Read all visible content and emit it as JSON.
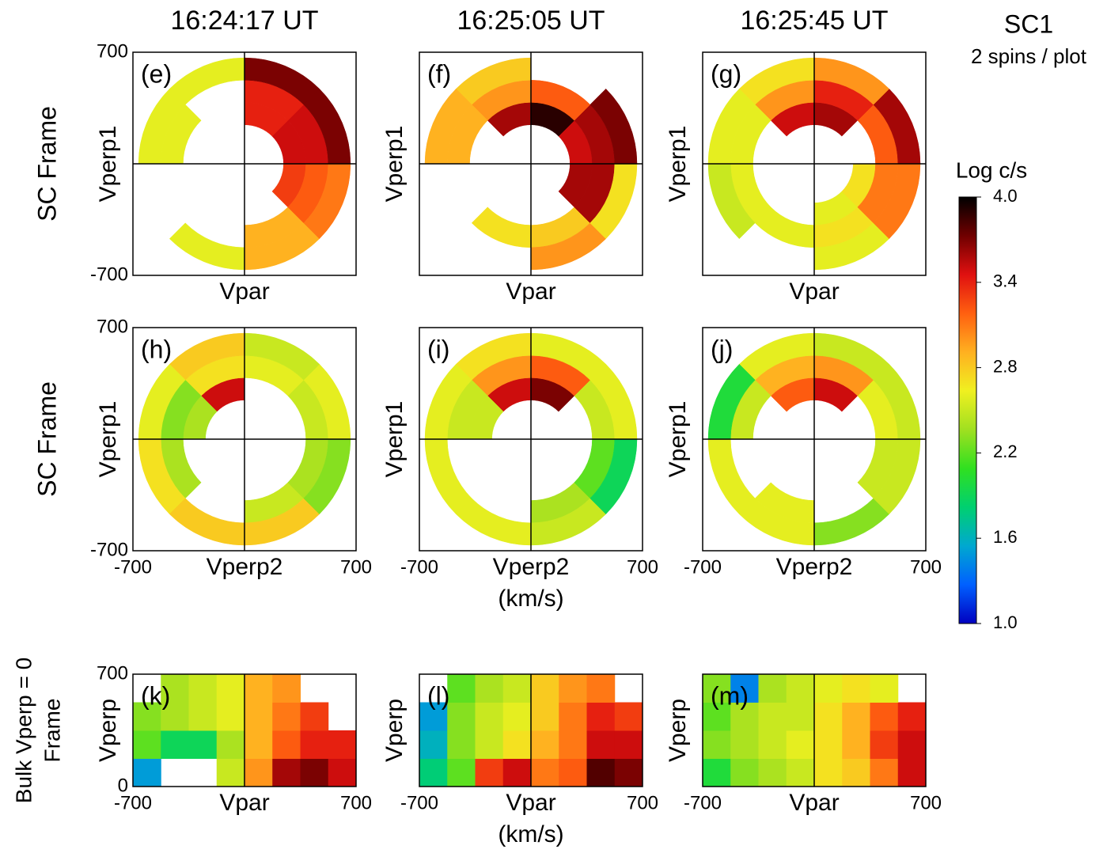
{
  "figure": {
    "titles": [
      "16:24:17 UT",
      "16:25:05 UT",
      "16:25:45 UT"
    ],
    "row_labels": [
      [
        "SC Frame"
      ],
      [
        "SC Frame"
      ],
      [
        "Bulk Vperp = 0",
        "Frame"
      ]
    ],
    "sc": "SC1",
    "spins": "2 spins / plot",
    "colorbar": {
      "label": "Log c/s",
      "lim": [
        1,
        4
      ],
      "ticks": [
        {
          "value": 1,
          "label": "1.0"
        },
        1.6,
        2.2,
        2.8,
        3.4,
        {
          "value": 4,
          "label": "4.0"
        }
      ],
      "colormap": [
        "#0000c0",
        "#0060ff",
        "#00a8d0",
        "#00d070",
        "#30e020",
        "#a0e020",
        "#f0f020",
        "#ffb020",
        "#ff6010",
        "#e01010",
        "#700000",
        "#000000"
      ]
    }
  },
  "chart_data": [
    {
      "type": "polar-heatmap",
      "tag": "(e)",
      "xlabel": "Vpar",
      "ylabel": "Vperp1",
      "xlim": [
        -700,
        700
      ],
      "ylim": [
        -700,
        700
      ],
      "yticks": [
        -700,
        700
      ],
      "r_bins": [
        245,
        385,
        525,
        665
      ],
      "angle_bins": [
        0,
        45,
        90,
        135,
        180,
        225,
        270,
        315,
        360
      ],
      "values": [
        [
          3.5,
          3.4,
          null,
          null,
          null,
          null,
          null,
          3.3
        ],
        [
          3.5,
          3.4,
          null,
          2.6,
          null,
          null,
          2.9,
          3.2
        ],
        [
          3.7,
          3.7,
          2.6,
          2.6,
          null,
          2.6,
          2.9,
          3.1
        ]
      ]
    },
    {
      "type": "polar-heatmap",
      "tag": "(f)",
      "xlabel": "Vpar",
      "ylabel": "Vperp1",
      "xlim": [
        -700,
        700
      ],
      "ylim": [
        -700,
        700
      ],
      "r_bins": [
        245,
        385,
        525,
        665
      ],
      "angle_bins": [
        0,
        45,
        90,
        135,
        180,
        225,
        270,
        315,
        360
      ],
      "values": [
        [
          3.5,
          3.9,
          3.6,
          null,
          null,
          null,
          null,
          3.6
        ],
        [
          3.6,
          3.2,
          3.0,
          2.9,
          null,
          2.7,
          2.8,
          3.6
        ],
        [
          3.7,
          null,
          2.8,
          2.9,
          null,
          null,
          3.0,
          2.7
        ]
      ]
    },
    {
      "type": "polar-heatmap",
      "tag": "(g)",
      "xlabel": "Vpar",
      "ylabel": "Vperp1",
      "xlim": [
        -700,
        700
      ],
      "ylim": [
        -700,
        700
      ],
      "r_bins": [
        245,
        385,
        525,
        665
      ],
      "angle_bins": [
        0,
        45,
        90,
        135,
        180,
        225,
        270,
        315,
        360
      ],
      "values": [
        [
          null,
          3.6,
          3.5,
          null,
          null,
          null,
          2.6,
          2.7
        ],
        [
          3.2,
          3.4,
          3.0,
          2.6,
          2.6,
          2.6,
          2.7,
          3.1
        ],
        [
          3.6,
          3.0,
          2.7,
          2.6,
          2.5,
          null,
          2.6,
          3.1
        ]
      ]
    },
    {
      "type": "polar-heatmap",
      "tag": "(h)",
      "xlabel": "Vperp2",
      "ylabel": "Vperp1",
      "xlim": [
        -700,
        700
      ],
      "ylim": [
        -700,
        700
      ],
      "xticks": [
        -700,
        700
      ],
      "yticks": [
        -700,
        700
      ],
      "r_bins": [
        245,
        385,
        525,
        665
      ],
      "angle_bins": [
        0,
        45,
        90,
        135,
        180,
        225,
        270,
        315,
        360
      ],
      "values": [
        [
          null,
          null,
          3.5,
          2.4,
          null,
          null,
          null,
          null
        ],
        [
          2.5,
          2.6,
          2.7,
          2.3,
          2.4,
          null,
          2.5,
          2.4
        ],
        [
          2.6,
          2.5,
          2.8,
          2.6,
          2.7,
          2.8,
          2.8,
          2.3
        ]
      ]
    },
    {
      "type": "polar-heatmap",
      "tag": "(i)",
      "xlabel": "Vperp2",
      "xunit": "(km/s)",
      "ylabel": "Vperp1",
      "xlim": [
        -700,
        700
      ],
      "ylim": [
        -700,
        700
      ],
      "xticks": [
        -700,
        700
      ],
      "r_bins": [
        245,
        385,
        525,
        665
      ],
      "angle_bins": [
        0,
        45,
        90,
        135,
        180,
        225,
        270,
        315,
        360
      ],
      "values": [
        [
          null,
          3.7,
          3.5,
          2.5,
          null,
          null,
          null,
          null
        ],
        [
          2.5,
          3.2,
          3.0,
          2.5,
          null,
          null,
          2.4,
          2.2
        ],
        [
          2.6,
          2.6,
          2.7,
          2.6,
          2.6,
          2.6,
          2.5,
          1.9
        ]
      ]
    },
    {
      "type": "polar-heatmap",
      "tag": "(j)",
      "xlabel": "Vperp2",
      "ylabel": "Vperp1",
      "xlim": [
        -700,
        700
      ],
      "ylim": [
        -700,
        700
      ],
      "xticks": [
        -700,
        700
      ],
      "r_bins": [
        245,
        385,
        525,
        665
      ],
      "angle_bins": [
        0,
        45,
        90,
        135,
        180,
        225,
        270,
        315,
        360
      ],
      "values": [
        [
          null,
          3.5,
          3.2,
          null,
          null,
          null,
          null,
          null
        ],
        [
          2.6,
          3.0,
          2.9,
          2.5,
          null,
          2.6,
          null,
          2.5
        ],
        [
          2.5,
          2.5,
          2.6,
          2.0,
          2.6,
          2.6,
          2.3,
          2.5
        ]
      ]
    },
    {
      "type": "heatmap",
      "tag": "(k)",
      "xlabel": "Vpar",
      "ylabel": "Vperp",
      "xlim": [
        -700,
        700
      ],
      "ylim": [
        0,
        700
      ],
      "xticks": [
        -700,
        700
      ],
      "yticks": [
        0,
        700
      ],
      "x_bins": [
        -700,
        -525,
        -350,
        -175,
        0,
        175,
        350,
        525,
        700
      ],
      "y_bins": [
        0,
        175,
        350,
        525,
        700
      ],
      "values": [
        [
          1.5,
          null,
          null,
          2.5,
          3.0,
          3.6,
          3.7,
          3.5
        ],
        [
          2.2,
          1.9,
          1.9,
          2.4,
          2.9,
          3.2,
          3.4,
          3.4
        ],
        [
          2.3,
          2.4,
          2.5,
          2.6,
          2.9,
          3.1,
          3.3,
          null
        ],
        [
          null,
          2.4,
          2.5,
          2.6,
          2.9,
          3.0,
          null,
          null
        ]
      ]
    },
    {
      "type": "heatmap",
      "tag": "(l)",
      "xlabel": "Vpar",
      "xunit": "(km/s)",
      "ylabel": "Vperp",
      "xlim": [
        -700,
        700
      ],
      "ylim": [
        0,
        700
      ],
      "xticks": [
        -700,
        700
      ],
      "x_bins": [
        -700,
        -525,
        -350,
        -175,
        0,
        175,
        350,
        525,
        700
      ],
      "y_bins": [
        0,
        175,
        350,
        525,
        700
      ],
      "values": [
        [
          1.8,
          2.2,
          3.3,
          3.5,
          3.1,
          3.2,
          3.8,
          3.7
        ],
        [
          1.6,
          2.3,
          2.5,
          2.7,
          2.9,
          3.1,
          3.5,
          3.5
        ],
        [
          1.5,
          2.3,
          2.5,
          2.6,
          2.8,
          3.1,
          3.4,
          3.3
        ],
        [
          null,
          2.2,
          2.4,
          2.5,
          2.8,
          3.0,
          3.1,
          null
        ]
      ]
    },
    {
      "type": "heatmap",
      "tag": "(m)",
      "xlabel": "Vpar",
      "ylabel": "Vperp",
      "xlim": [
        -700,
        700
      ],
      "ylim": [
        0,
        700
      ],
      "xticks": [
        -700,
        700
      ],
      "x_bins": [
        -700,
        -525,
        -350,
        -175,
        0,
        175,
        350,
        525,
        700
      ],
      "y_bins": [
        0,
        175,
        350,
        525,
        700
      ],
      "values": [
        [
          2.0,
          2.3,
          2.4,
          2.5,
          2.7,
          2.8,
          3.1,
          3.5
        ],
        [
          2.3,
          2.4,
          2.5,
          2.6,
          2.7,
          2.9,
          3.3,
          3.5
        ],
        [
          2.2,
          2.4,
          2.5,
          2.5,
          2.7,
          2.9,
          3.2,
          3.4
        ],
        [
          2.3,
          1.4,
          2.4,
          2.5,
          2.6,
          2.7,
          2.6,
          null
        ]
      ]
    }
  ]
}
